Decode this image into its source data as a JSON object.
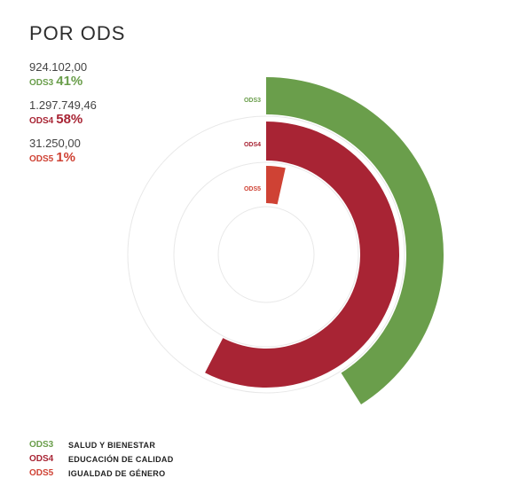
{
  "title": "POR ODS",
  "colors": {
    "ODS3": "#6a9e4b",
    "ODS4": "#a82434",
    "ODS5": "#cf4234"
  },
  "stats": [
    {
      "amount": "924.102,00",
      "code": "ODS3",
      "pct": "41%"
    },
    {
      "amount": "1.297.749,46",
      "code": "ODS4",
      "pct": "58%"
    },
    {
      "amount": "31.250,00",
      "code": "ODS5",
      "pct": "1%"
    }
  ],
  "legend": [
    {
      "code": "ODS3",
      "label": "SALUD Y BIENESTAR"
    },
    {
      "code": "ODS4",
      "label": "EDUCACIÓN DE CALIDAD"
    },
    {
      "code": "ODS5",
      "label": "IGUALDAD DE GÉNERO"
    }
  ],
  "chart_data": {
    "type": "radial_bar",
    "categories": [
      "ODS3",
      "ODS4",
      "ODS5"
    ],
    "values": [
      924102.0,
      1297749.46,
      31250.0
    ],
    "percent": [
      41,
      58,
      1
    ],
    "legend_position": "bottom-left"
  }
}
